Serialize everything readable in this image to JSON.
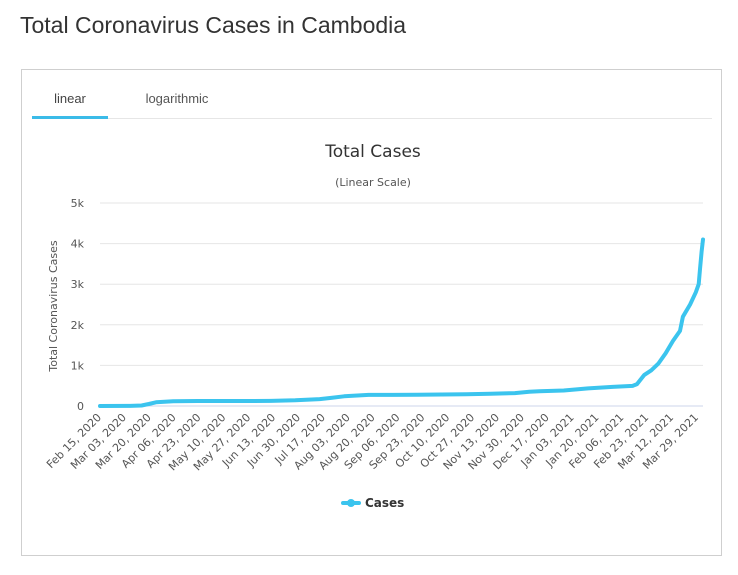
{
  "page": {
    "title": "Total Coronavirus Cases in Cambodia"
  },
  "tabs": [
    {
      "label": "linear",
      "active": true
    },
    {
      "label": "logarithmic",
      "active": false
    }
  ],
  "colors": {
    "series": "#3bc4ee",
    "tab_active": "#3bbbe8",
    "grid": "#e6e6e6"
  },
  "chart_data": {
    "type": "line",
    "title": "Total Cases",
    "subtitle": "(Linear Scale)",
    "ylabel": "Total Coronavirus Cases",
    "xlabel": "",
    "ylim": [
      0,
      5000
    ],
    "yticks": [
      0,
      1000,
      2000,
      3000,
      4000,
      5000
    ],
    "ytick_labels": [
      "0",
      "1k",
      "2k",
      "3k",
      "4k",
      "5k"
    ],
    "x_start": "2020-02-15",
    "x_end": "2021-04-10",
    "x_tick_labels": [
      "Feb 15, 2020",
      "Mar 03, 2020",
      "Mar 20, 2020",
      "Apr 06, 2020",
      "Apr 23, 2020",
      "May 10, 2020",
      "May 27, 2020",
      "Jun 13, 2020",
      "Jun 30, 2020",
      "Jul 17, 2020",
      "Aug 03, 2020",
      "Aug 20, 2020",
      "Sep 06, 2020",
      "Sep 23, 2020",
      "Oct 10, 2020",
      "Oct 27, 2020",
      "Nov 13, 2020",
      "Nov 30, 2020",
      "Dec 17, 2020",
      "Jan 03, 2021",
      "Jan 20, 2021",
      "Feb 06, 2021",
      "Feb 23, 2021",
      "Mar 12, 2021",
      "Mar 29, 2021"
    ],
    "grid": true,
    "legend": "bottom-center",
    "series": [
      {
        "name": "Cases",
        "color": "#3bc4ee",
        "points": [
          [
            "2020-02-15",
            1
          ],
          [
            "2020-03-07",
            2
          ],
          [
            "2020-03-15",
            12
          ],
          [
            "2020-03-20",
            50
          ],
          [
            "2020-03-25",
            91
          ],
          [
            "2020-04-06",
            115
          ],
          [
            "2020-04-23",
            122
          ],
          [
            "2020-05-10",
            122
          ],
          [
            "2020-05-27",
            124
          ],
          [
            "2020-06-13",
            126
          ],
          [
            "2020-06-30",
            141
          ],
          [
            "2020-07-17",
            171
          ],
          [
            "2020-07-25",
            200
          ],
          [
            "2020-08-03",
            240
          ],
          [
            "2020-08-20",
            273
          ],
          [
            "2020-09-06",
            274
          ],
          [
            "2020-09-23",
            275
          ],
          [
            "2020-10-10",
            283
          ],
          [
            "2020-10-27",
            291
          ],
          [
            "2020-11-13",
            304
          ],
          [
            "2020-11-30",
            318
          ],
          [
            "2020-12-10",
            350
          ],
          [
            "2020-12-17",
            362
          ],
          [
            "2021-01-03",
            382
          ],
          [
            "2021-01-20",
            434
          ],
          [
            "2021-02-06",
            470
          ],
          [
            "2021-02-20",
            495
          ],
          [
            "2021-02-23",
            540
          ],
          [
            "2021-02-28",
            760
          ],
          [
            "2021-03-05",
            880
          ],
          [
            "2021-03-10",
            1050
          ],
          [
            "2021-03-15",
            1300
          ],
          [
            "2021-03-20",
            1600
          ],
          [
            "2021-03-25",
            1850
          ],
          [
            "2021-03-27",
            2200
          ],
          [
            "2021-04-01",
            2500
          ],
          [
            "2021-04-05",
            2800
          ],
          [
            "2021-04-07",
            3000
          ],
          [
            "2021-04-08",
            3400
          ],
          [
            "2021-04-09",
            3800
          ],
          [
            "2021-04-10",
            4100
          ]
        ]
      }
    ]
  }
}
